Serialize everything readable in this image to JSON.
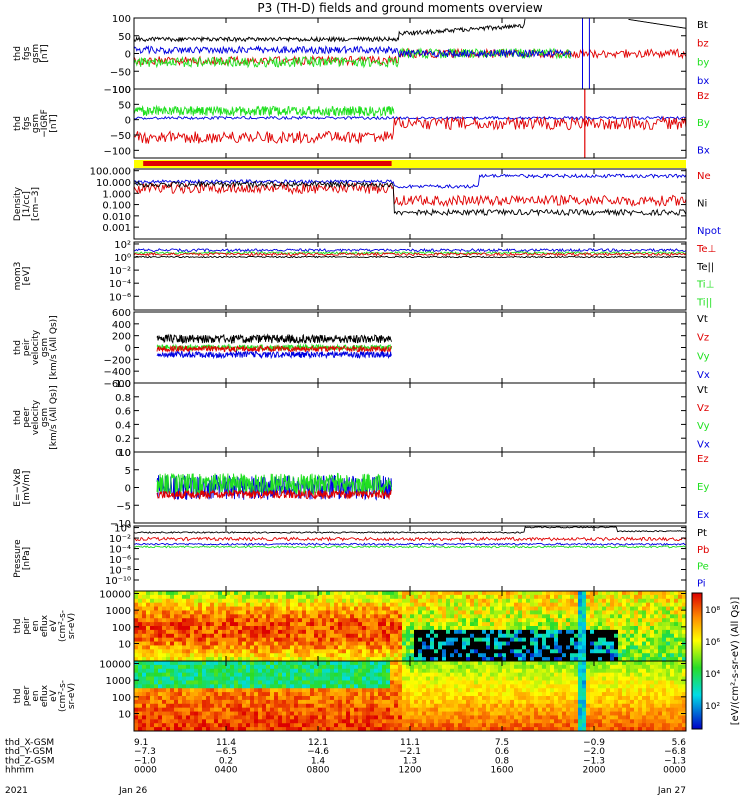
{
  "title": "P3 (TH-D) fields and ground moments overview",
  "colors": {
    "black": "#000000",
    "red": "#e00000",
    "green": "#20e020",
    "blue": "#0000e0",
    "yellow": "#ffff00"
  },
  "chart_data": [
    {
      "type": "line",
      "panel": "fgs",
      "ylabel": [
        "thd",
        "fgs",
        "gsm",
        "[nT]"
      ],
      "ylim": [
        -100,
        100
      ],
      "yticks": [
        "100",
        "50",
        "0",
        "−50",
        "−100"
      ],
      "yvalues": [
        100,
        50,
        0,
        -50,
        -100
      ],
      "legend": [
        {
          "label": "Bt",
          "color": "#000000"
        },
        {
          "label": "bz",
          "color": "#e00000"
        },
        {
          "label": "by",
          "color": "#20e020"
        },
        {
          "label": "bx",
          "color": "#0000e0"
        }
      ]
    },
    {
      "type": "line",
      "panel": "fgs-dsl",
      "ylabel": [
        "thd",
        "fgs",
        "gsm",
        "−IGRF",
        "[nT]"
      ],
      "ylim": [
        -125,
        100
      ],
      "yticks": [
        "100",
        "50",
        "0",
        "−50",
        "−100"
      ],
      "yvalues": [
        100,
        50,
        0,
        -50,
        -100
      ],
      "legend": [
        {
          "label": "Bz",
          "color": "#e00000"
        },
        {
          "label": "By",
          "color": "#20e020"
        },
        {
          "label": "Bx",
          "color": "#0000e0"
        }
      ]
    },
    {
      "type": "line",
      "panel": "density",
      "ylabel": [
        "Density",
        "[1/cc]",
        "[cm−3]"
      ],
      "log": true,
      "yticks": [
        "100.000",
        "10.000",
        "1.000",
        "0.100",
        "0.010",
        "0.001"
      ],
      "legend": [
        {
          "label": "Ne",
          "color": "#e00000"
        },
        {
          "label": "Ni",
          "color": "#000000"
        },
        {
          "label": "Npot",
          "color": "#0000e0"
        }
      ]
    },
    {
      "type": "line",
      "panel": "temperature",
      "ylabel": [
        "mom3",
        "[eV]"
      ],
      "log": true,
      "yticks": [
        "10²",
        "10⁰",
        "10⁻²",
        "10⁻⁴",
        "10⁻⁶"
      ],
      "legend": [
        {
          "label": "Te⊥",
          "color": "#e00000"
        },
        {
          "label": "Te||",
          "color": "#000000"
        },
        {
          "label": "Ti⊥",
          "color": "#20e020"
        },
        {
          "label": "Ti||",
          "color": "#20e020"
        }
      ]
    },
    {
      "type": "line",
      "panel": "peir-velocity",
      "ylabel": [
        "thd",
        "peir",
        "velocity",
        "gsm",
        "[km/s (All Qs)]"
      ],
      "ylim": [
        -600,
        600
      ],
      "yticks": [
        "600",
        "400",
        "200",
        "0",
        "−200",
        "−400",
        "−600"
      ],
      "yvalues": [
        600,
        400,
        200,
        0,
        -200,
        -400,
        -600
      ],
      "legend": [
        {
          "label": "Vt",
          "color": "#000000"
        },
        {
          "label": "Vz",
          "color": "#e00000"
        },
        {
          "label": "Vy",
          "color": "#20e020"
        },
        {
          "label": "Vx",
          "color": "#0000e0"
        }
      ]
    },
    {
      "type": "line",
      "panel": "peer-velocity",
      "ylabel": [
        "thd",
        "peer",
        "velocity",
        "gsm",
        "[km/s (All Qs)]"
      ],
      "ylim": [
        0,
        1
      ],
      "yticks": [
        "1.0",
        "0.8",
        "0.6",
        "0.4",
        "0.2",
        "0.0"
      ],
      "yvalues": [
        1.0,
        0.8,
        0.6,
        0.4,
        0.2,
        0.0
      ],
      "legend": [
        {
          "label": "Vt",
          "color": "#000000"
        },
        {
          "label": "Vz",
          "color": "#e00000"
        },
        {
          "label": "Vy",
          "color": "#20e020"
        },
        {
          "label": "Vx",
          "color": "#0000e0"
        }
      ]
    },
    {
      "type": "line",
      "panel": "efield",
      "ylabel": [
        "E=−VxB",
        "[mV/m]"
      ],
      "ylim": [
        -10,
        10
      ],
      "yticks": [
        "10",
        "5",
        "0",
        "−5",
        "−10"
      ],
      "yvalues": [
        10,
        5,
        0,
        -5,
        -10
      ],
      "legend": [
        {
          "label": "Ez",
          "color": "#e00000"
        },
        {
          "label": "Ey",
          "color": "#20e020"
        },
        {
          "label": "Ex",
          "color": "#0000e0"
        }
      ]
    },
    {
      "type": "line",
      "panel": "pressure",
      "ylabel": [
        "Pressure",
        "[nPa]"
      ],
      "log": true,
      "yticks": [
        "10⁰",
        "10⁻²",
        "10⁻⁴",
        "10⁻⁶",
        "10⁻⁸",
        "10⁻¹⁰"
      ],
      "legend": [
        {
          "label": "Pt",
          "color": "#000000"
        },
        {
          "label": "Pb",
          "color": "#e00000"
        },
        {
          "label": "Pe",
          "color": "#20e020"
        },
        {
          "label": "Pi",
          "color": "#0000e0"
        }
      ]
    },
    {
      "type": "heatmap",
      "panel": "peir-en-eflux",
      "ylabel": [
        "thd",
        "peir",
        "en",
        "eflux",
        "eV",
        "(cm²-s-",
        "sr-eV)"
      ],
      "log": true,
      "yticks": [
        "10000",
        "1000",
        "100",
        "10"
      ]
    },
    {
      "type": "heatmap",
      "panel": "peer-en-eflux",
      "ylabel": [
        "thd",
        "peer",
        "en",
        "eflux",
        "eV",
        "(cm²-s-",
        "sr-eV)"
      ],
      "log": true,
      "yticks": [
        "10000",
        "1000",
        "100",
        "10"
      ]
    }
  ],
  "colorbar": {
    "label": "[eV/(cm²-s-sr-eV) (All Qs)]",
    "ticks": [
      "10⁸",
      "10⁶",
      "10⁴",
      "10²"
    ]
  },
  "xaxis": {
    "rows": [
      {
        "label": "thd_X-GSM",
        "values": [
          "9.1",
          "11.4",
          "12.1",
          "11.1",
          "7.5",
          "−0.9",
          "5.6"
        ]
      },
      {
        "label": "thd_Y-GSM",
        "values": [
          "−7.3",
          "−6.5",
          "−4.6",
          "−2.1",
          "0.6",
          "−2.0",
          "−6.8"
        ]
      },
      {
        "label": "thd_Z-GSM",
        "values": [
          "−1.0",
          "0.2",
          "1.4",
          "1.3",
          "0.8",
          "−1.3",
          "−1.3"
        ]
      },
      {
        "label": "hhmm",
        "values": [
          "0000",
          "0400",
          "0800",
          "1200",
          "1600",
          "2000",
          "0000"
        ]
      }
    ],
    "year": "2021",
    "date_start": "Jan 26",
    "date_end": "Jan 27",
    "hours": [
      0,
      4,
      8,
      12,
      16,
      20,
      24
    ]
  }
}
